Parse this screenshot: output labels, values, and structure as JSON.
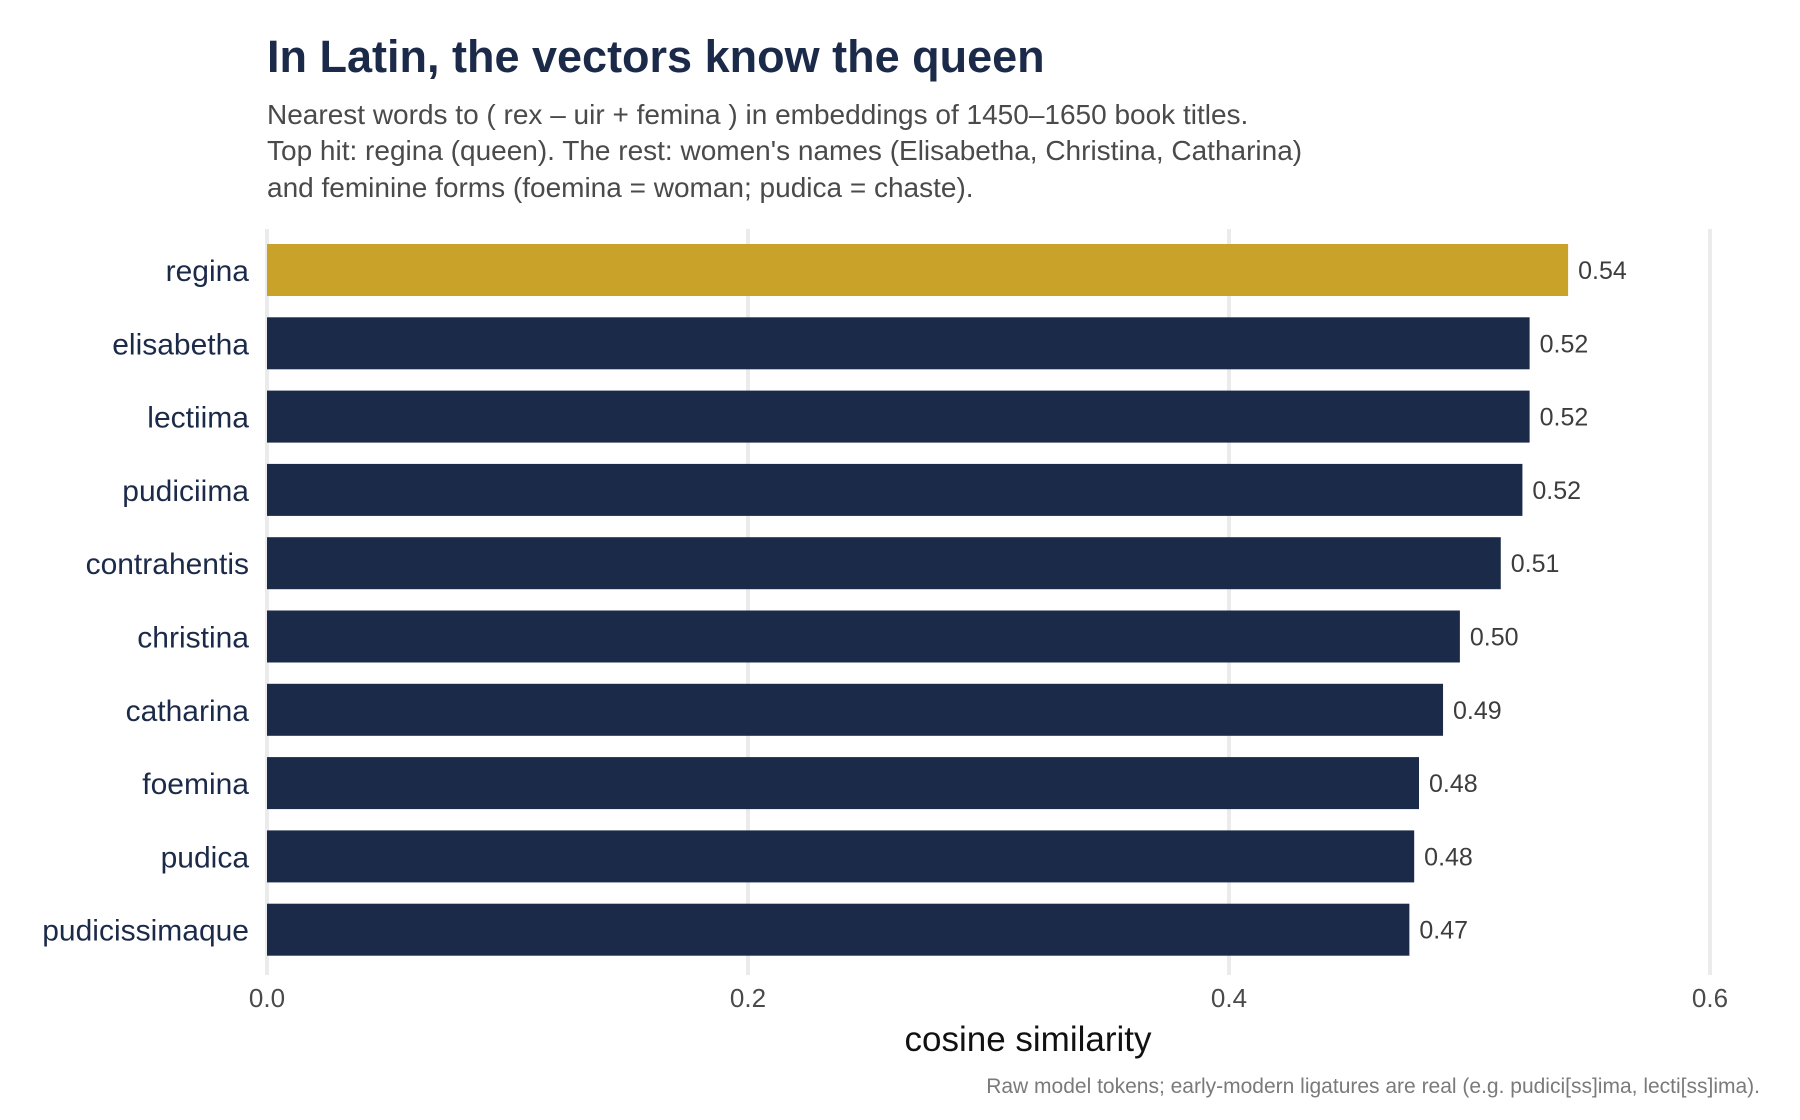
{
  "chart_data": {
    "type": "bar",
    "orientation": "horizontal",
    "title": "In Latin, the vectors know the queen",
    "subtitle_lines": [
      "Nearest words to  ( rex – uir + femina )  in embeddings of 1450–1650 book titles.",
      "Top hit: regina (queen). The rest: women's names (Elisabetha, Christina, Catharina)",
      "and feminine forms (foemina = woman; pudica = chaste)."
    ],
    "xlabel": "cosine similarity",
    "ylabel": "",
    "caption": "Raw model tokens; early-modern ligatures are real (e.g. pudici[ss]ima, lecti[ss]ima).",
    "categories": [
      "regina",
      "elisabetha",
      "lectiima",
      "pudiciima",
      "contrahentis",
      "christina",
      "catharina",
      "foemina",
      "pudica",
      "pudicissimaque"
    ],
    "values": [
      0.541,
      0.525,
      0.525,
      0.522,
      0.513,
      0.496,
      0.489,
      0.479,
      0.477,
      0.475
    ],
    "value_labels": [
      "0.54",
      "0.52",
      "0.52",
      "0.52",
      "0.51",
      "0.50",
      "0.49",
      "0.48",
      "0.48",
      "0.47"
    ],
    "xlim": [
      0,
      0.6
    ],
    "xticks": [
      0.0,
      0.2,
      0.4,
      0.6
    ],
    "xtick_labels": [
      "0.0",
      "0.2",
      "0.4",
      "0.6"
    ],
    "highlight_category": "regina",
    "colors": {
      "highlight": "#c9a22a",
      "bar": "#1c2a4a"
    },
    "grid": true,
    "legend": "none"
  }
}
